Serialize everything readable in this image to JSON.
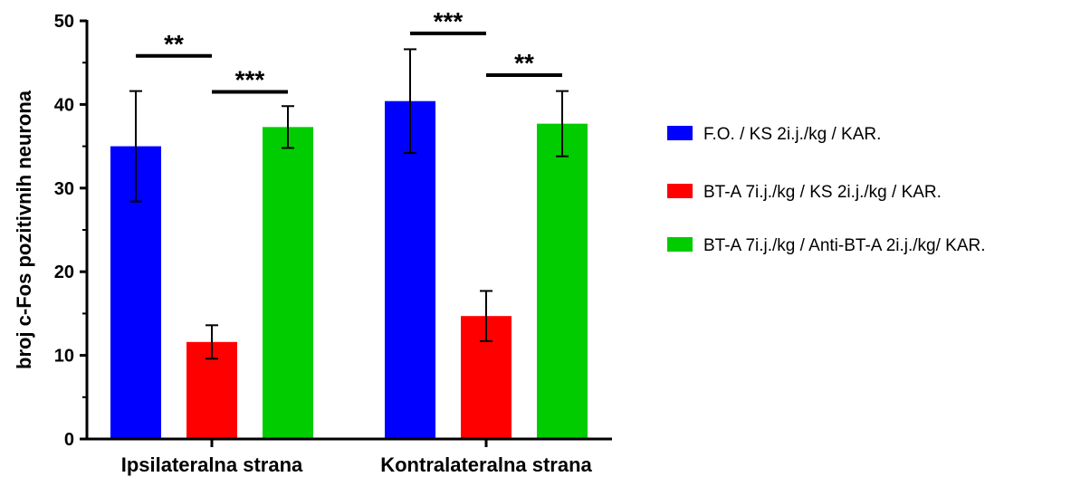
{
  "chart_data": {
    "type": "bar",
    "title": "",
    "xlabel": "",
    "ylabel": "broj c-Fos pozitivnih neurona",
    "ylim": [
      0,
      50
    ],
    "y_ticks": [
      0,
      10,
      20,
      30,
      40,
      50
    ],
    "grid": false,
    "legend_position": "right",
    "categories": [
      "Ipsilateralna strana",
      "Kontralateralna strana"
    ],
    "series": [
      {
        "name": "F.O. / KS 2i.j./kg / KAR.",
        "color": "#0000ff",
        "values": [
          35.0,
          40.4
        ],
        "errors": [
          6.6,
          6.2
        ]
      },
      {
        "name": "BT-A 7i.j./kg / KS 2i.j./kg / KAR.",
        "color": "#ff0000",
        "values": [
          11.6,
          14.7
        ],
        "errors": [
          2.0,
          3.0
        ]
      },
      {
        "name": "BT-A 7i.j./kg / Anti-BT-A 2i.j./kg/ KAR.",
        "color": "#00cc00",
        "values": [
          37.3,
          37.7
        ],
        "errors": [
          2.5,
          3.9
        ]
      }
    ],
    "significance": [
      {
        "category": 0,
        "from_series": 0,
        "to_series": 1,
        "y": 45.8,
        "label": "**"
      },
      {
        "category": 0,
        "from_series": 1,
        "to_series": 2,
        "y": 41.5,
        "label": "***"
      },
      {
        "category": 1,
        "from_series": 0,
        "to_series": 1,
        "y": 48.5,
        "label": "***"
      },
      {
        "category": 1,
        "from_series": 1,
        "to_series": 2,
        "y": 43.5,
        "label": "**"
      }
    ]
  }
}
